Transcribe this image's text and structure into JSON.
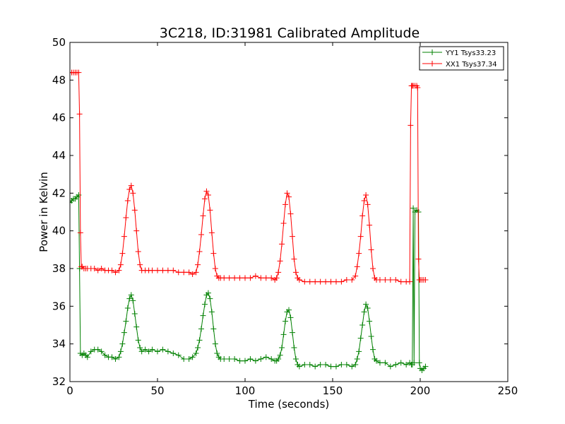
{
  "chart_data": {
    "type": "line",
    "title": "3C218, ID:31981 Calibrated Amplitude",
    "xlabel": "Time (seconds)",
    "ylabel": "Power in Kelvin",
    "xlim": [
      0,
      250
    ],
    "ylim": [
      32,
      50
    ],
    "xticks": [
      0,
      50,
      100,
      150,
      200,
      250
    ],
    "yticks": [
      32,
      34,
      36,
      38,
      40,
      42,
      44,
      46,
      48,
      50
    ],
    "grid": false,
    "legend_position": "top-right",
    "marker": "plus",
    "series": [
      {
        "name": "YY1 Tsys33.23",
        "color": "#008000",
        "x": [
          0,
          1,
          2,
          3,
          4,
          5,
          5.5,
          6,
          7,
          8,
          9,
          10,
          12,
          14,
          16,
          18,
          20,
          22,
          24,
          26,
          28,
          29,
          30,
          31,
          32,
          33,
          34,
          35,
          36,
          37,
          38,
          39,
          40,
          41,
          43,
          45,
          47,
          50,
          53,
          56,
          59,
          62,
          65,
          68,
          70,
          72,
          73,
          74,
          75,
          76,
          77,
          78,
          79,
          80,
          81,
          82,
          83,
          84,
          85,
          86,
          88,
          91,
          94,
          97,
          100,
          103,
          106,
          109,
          112,
          115,
          117,
          118,
          119,
          120,
          121,
          122,
          123,
          124,
          125,
          126,
          127,
          128,
          129,
          130,
          131,
          134,
          137,
          140,
          143,
          146,
          149,
          152,
          155,
          158,
          161,
          163,
          164,
          165,
          166,
          167,
          168,
          169,
          170,
          171,
          172,
          173,
          174,
          175,
          177,
          180,
          183,
          186,
          189,
          192,
          194,
          195,
          195.5,
          196,
          196.5,
          197,
          198,
          199,
          199.5,
          200,
          201,
          202,
          203
        ],
        "y": [
          41.5,
          41.6,
          41.7,
          41.7,
          41.8,
          41.9,
          38.0,
          33.5,
          33.4,
          33.5,
          33.4,
          33.3,
          33.6,
          33.7,
          33.7,
          33.6,
          33.4,
          33.3,
          33.3,
          33.2,
          33.3,
          33.6,
          34.0,
          34.6,
          35.2,
          35.9,
          36.4,
          36.6,
          36.3,
          35.6,
          34.9,
          34.2,
          33.8,
          33.6,
          33.7,
          33.6,
          33.7,
          33.6,
          33.7,
          33.6,
          33.5,
          33.4,
          33.2,
          33.2,
          33.3,
          33.5,
          33.8,
          34.2,
          34.8,
          35.5,
          36.1,
          36.6,
          36.7,
          36.4,
          35.7,
          34.8,
          34.0,
          33.5,
          33.3,
          33.2,
          33.2,
          33.2,
          33.2,
          33.1,
          33.1,
          33.2,
          33.1,
          33.2,
          33.3,
          33.2,
          33.1,
          33.1,
          33.2,
          33.4,
          33.8,
          34.5,
          35.2,
          35.7,
          35.8,
          35.4,
          34.6,
          33.8,
          33.2,
          32.9,
          32.8,
          32.9,
          32.9,
          32.8,
          32.9,
          32.9,
          32.8,
          32.8,
          32.9,
          32.9,
          32.8,
          32.9,
          33.2,
          33.6,
          34.3,
          35.0,
          35.7,
          36.1,
          35.9,
          35.2,
          34.4,
          33.7,
          33.2,
          33.1,
          33.0,
          33.0,
          32.8,
          32.9,
          33.0,
          32.9,
          33.0,
          32.9,
          32.9,
          41.2,
          33.0,
          41.0,
          41.1,
          41.0,
          33.0,
          32.7,
          32.6,
          32.7,
          32.8
        ]
      },
      {
        "name": "XX1 Tsys37.34",
        "color": "#ff0000",
        "x": [
          0,
          1,
          2,
          3,
          4,
          5,
          5.5,
          6,
          6.5,
          7,
          8,
          9,
          10,
          12,
          14,
          16,
          18,
          20,
          22,
          24,
          26,
          28,
          29,
          30,
          31,
          32,
          33,
          34,
          35,
          36,
          37,
          38,
          39,
          40,
          41,
          43,
          45,
          47,
          50,
          53,
          56,
          59,
          62,
          65,
          68,
          70,
          72,
          73,
          74,
          75,
          76,
          77,
          78,
          79,
          80,
          81,
          82,
          83,
          84,
          85,
          86,
          88,
          91,
          94,
          97,
          100,
          103,
          106,
          109,
          112,
          115,
          117,
          118,
          119,
          120,
          121,
          122,
          123,
          124,
          125,
          126,
          127,
          128,
          129,
          130,
          131,
          134,
          137,
          140,
          143,
          146,
          149,
          152,
          155,
          158,
          161,
          163,
          164,
          165,
          166,
          167,
          168,
          169,
          170,
          171,
          172,
          173,
          174,
          175,
          177,
          180,
          183,
          186,
          189,
          192,
          194,
          194.5,
          195,
          195.5,
          196,
          197,
          198,
          198.5,
          199,
          199.5,
          200,
          201,
          202,
          203
        ],
        "y": [
          48.4,
          48.4,
          48.4,
          48.4,
          48.4,
          48.4,
          46.2,
          39.9,
          38.1,
          38.1,
          38.0,
          38.0,
          38.0,
          38.0,
          38.0,
          37.9,
          38.0,
          37.9,
          37.9,
          37.9,
          37.8,
          37.9,
          38.2,
          38.8,
          39.7,
          40.7,
          41.6,
          42.2,
          42.4,
          42.0,
          41.1,
          40.0,
          38.9,
          38.2,
          37.9,
          37.9,
          37.9,
          37.9,
          37.9,
          37.9,
          37.9,
          37.9,
          37.8,
          37.8,
          37.8,
          37.7,
          37.8,
          38.2,
          38.9,
          39.8,
          40.8,
          41.7,
          42.1,
          41.9,
          41.1,
          39.9,
          38.8,
          38.0,
          37.6,
          37.5,
          37.5,
          37.5,
          37.5,
          37.5,
          37.5,
          37.5,
          37.5,
          37.6,
          37.5,
          37.5,
          37.5,
          37.4,
          37.5,
          37.8,
          38.4,
          39.3,
          40.4,
          41.4,
          42.0,
          41.8,
          40.9,
          39.7,
          38.5,
          37.8,
          37.5,
          37.4,
          37.3,
          37.3,
          37.3,
          37.3,
          37.3,
          37.3,
          37.3,
          37.3,
          37.4,
          37.4,
          37.6,
          38.1,
          38.8,
          39.7,
          40.8,
          41.6,
          41.9,
          41.4,
          40.3,
          39.0,
          38.0,
          37.5,
          37.4,
          37.4,
          37.4,
          37.4,
          37.4,
          37.3,
          37.3,
          37.3,
          45.6,
          47.7,
          47.7,
          47.7,
          47.7,
          47.7,
          47.6,
          38.5,
          37.4,
          37.4,
          37.4,
          37.4,
          37.4
        ]
      }
    ]
  }
}
